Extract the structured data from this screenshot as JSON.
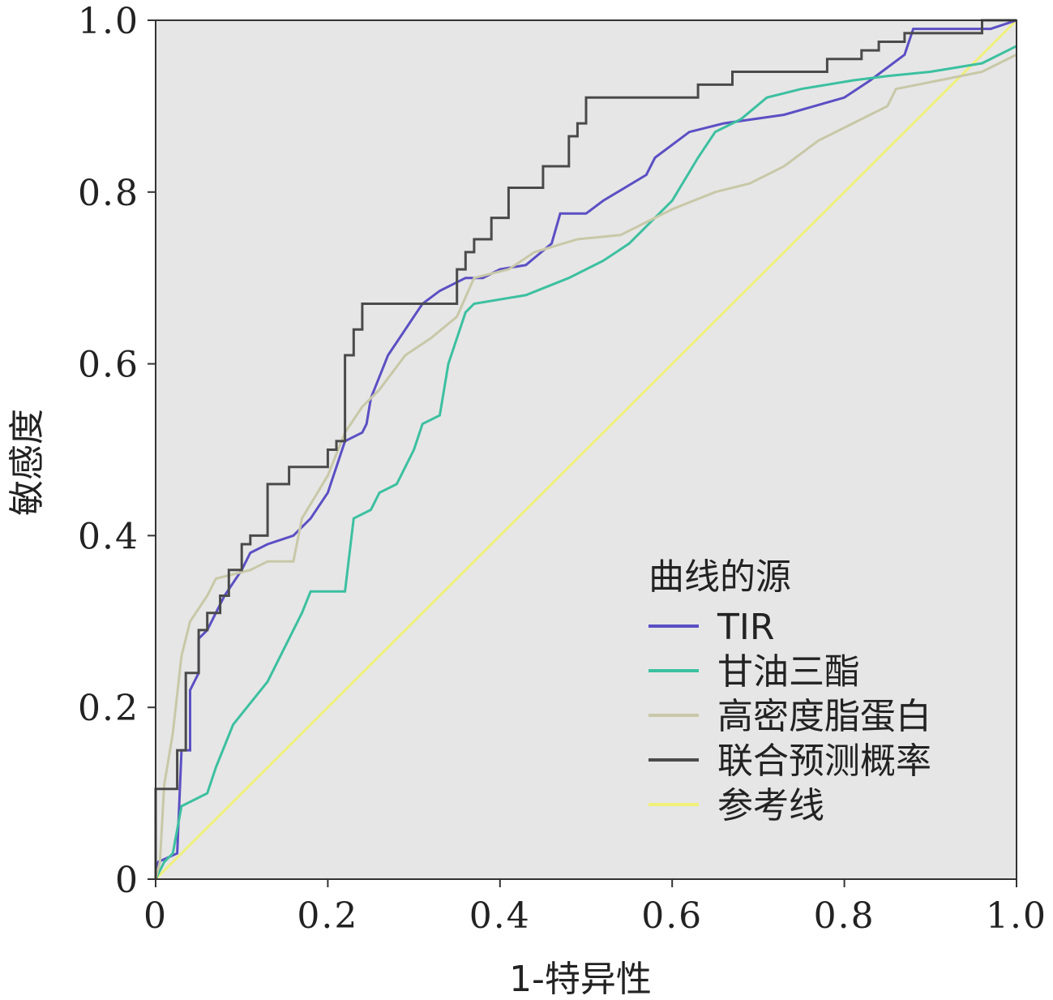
{
  "chart_data": {
    "type": "line",
    "title": "",
    "xlabel": "1-特异性",
    "ylabel": "敏感度",
    "xlim": [
      0,
      1
    ],
    "ylim": [
      0,
      1
    ],
    "x_ticks": [
      "0",
      "0.2",
      "0.4",
      "0.6",
      "0.8",
      "1.0"
    ],
    "y_ticks": [
      "0",
      "0.2",
      "0.4",
      "0.6",
      "0.8",
      "1.0"
    ],
    "grid": false,
    "background": "#e6e6e6",
    "legend": {
      "title": "曲线的源",
      "position": "bottom-right"
    },
    "series": [
      {
        "name": "TIR",
        "color": "#5b4fc4",
        "points": [
          [
            0,
            0
          ],
          [
            0.003,
            0.02
          ],
          [
            0.025,
            0.03
          ],
          [
            0.03,
            0.15
          ],
          [
            0.04,
            0.15
          ],
          [
            0.04,
            0.22
          ],
          [
            0.05,
            0.24
          ],
          [
            0.05,
            0.28
          ],
          [
            0.06,
            0.29
          ],
          [
            0.07,
            0.31
          ],
          [
            0.08,
            0.33
          ],
          [
            0.1,
            0.36
          ],
          [
            0.11,
            0.38
          ],
          [
            0.13,
            0.39
          ],
          [
            0.16,
            0.4
          ],
          [
            0.18,
            0.42
          ],
          [
            0.2,
            0.45
          ],
          [
            0.22,
            0.51
          ],
          [
            0.24,
            0.52
          ],
          [
            0.245,
            0.53
          ],
          [
            0.25,
            0.56
          ],
          [
            0.27,
            0.61
          ],
          [
            0.29,
            0.64
          ],
          [
            0.31,
            0.67
          ],
          [
            0.33,
            0.685
          ],
          [
            0.36,
            0.7
          ],
          [
            0.38,
            0.7
          ],
          [
            0.4,
            0.71
          ],
          [
            0.43,
            0.715
          ],
          [
            0.46,
            0.74
          ],
          [
            0.47,
            0.775
          ],
          [
            0.5,
            0.775
          ],
          [
            0.52,
            0.79
          ],
          [
            0.57,
            0.82
          ],
          [
            0.58,
            0.84
          ],
          [
            0.62,
            0.87
          ],
          [
            0.66,
            0.88
          ],
          [
            0.73,
            0.89
          ],
          [
            0.8,
            0.91
          ],
          [
            0.83,
            0.93
          ],
          [
            0.87,
            0.96
          ],
          [
            0.88,
            0.99
          ],
          [
            0.97,
            0.99
          ],
          [
            1,
            1
          ]
        ]
      },
      {
        "name": "甘油三酯",
        "color": "#3cc0a0",
        "points": [
          [
            0,
            0
          ],
          [
            0.01,
            0.02
          ],
          [
            0.02,
            0.03
          ],
          [
            0.03,
            0.085
          ],
          [
            0.06,
            0.1
          ],
          [
            0.07,
            0.13
          ],
          [
            0.09,
            0.18
          ],
          [
            0.13,
            0.23
          ],
          [
            0.15,
            0.27
          ],
          [
            0.17,
            0.31
          ],
          [
            0.18,
            0.335
          ],
          [
            0.22,
            0.335
          ],
          [
            0.23,
            0.42
          ],
          [
            0.25,
            0.43
          ],
          [
            0.26,
            0.45
          ],
          [
            0.28,
            0.46
          ],
          [
            0.3,
            0.5
          ],
          [
            0.31,
            0.53
          ],
          [
            0.33,
            0.54
          ],
          [
            0.34,
            0.6
          ],
          [
            0.36,
            0.66
          ],
          [
            0.37,
            0.67
          ],
          [
            0.43,
            0.68
          ],
          [
            0.48,
            0.7
          ],
          [
            0.52,
            0.72
          ],
          [
            0.55,
            0.74
          ],
          [
            0.57,
            0.76
          ],
          [
            0.6,
            0.79
          ],
          [
            0.63,
            0.84
          ],
          [
            0.65,
            0.87
          ],
          [
            0.68,
            0.885
          ],
          [
            0.71,
            0.91
          ],
          [
            0.75,
            0.92
          ],
          [
            0.81,
            0.93
          ],
          [
            0.85,
            0.935
          ],
          [
            0.9,
            0.94
          ],
          [
            0.96,
            0.95
          ],
          [
            1,
            0.97
          ]
        ]
      },
      {
        "name": "高密度脂蛋白",
        "color": "#c8c8a8",
        "points": [
          [
            0,
            0
          ],
          [
            0.005,
            0.02
          ],
          [
            0.01,
            0.11
          ],
          [
            0.02,
            0.17
          ],
          [
            0.03,
            0.26
          ],
          [
            0.04,
            0.3
          ],
          [
            0.06,
            0.33
          ],
          [
            0.07,
            0.35
          ],
          [
            0.11,
            0.36
          ],
          [
            0.13,
            0.37
          ],
          [
            0.16,
            0.37
          ],
          [
            0.17,
            0.42
          ],
          [
            0.2,
            0.47
          ],
          [
            0.22,
            0.52
          ],
          [
            0.24,
            0.55
          ],
          [
            0.26,
            0.57
          ],
          [
            0.29,
            0.61
          ],
          [
            0.32,
            0.63
          ],
          [
            0.35,
            0.655
          ],
          [
            0.37,
            0.7
          ],
          [
            0.41,
            0.71
          ],
          [
            0.44,
            0.73
          ],
          [
            0.49,
            0.745
          ],
          [
            0.54,
            0.75
          ],
          [
            0.6,
            0.78
          ],
          [
            0.65,
            0.8
          ],
          [
            0.69,
            0.81
          ],
          [
            0.73,
            0.83
          ],
          [
            0.77,
            0.86
          ],
          [
            0.81,
            0.88
          ],
          [
            0.85,
            0.9
          ],
          [
            0.86,
            0.92
          ],
          [
            0.91,
            0.93
          ],
          [
            0.96,
            0.94
          ],
          [
            1,
            0.96
          ]
        ]
      },
      {
        "name": "联合预测概率",
        "color": "#4a4a4a",
        "points": [
          [
            0,
            0
          ],
          [
            0,
            0.105
          ],
          [
            0.025,
            0.105
          ],
          [
            0.025,
            0.15
          ],
          [
            0.035,
            0.15
          ],
          [
            0.035,
            0.24
          ],
          [
            0.05,
            0.24
          ],
          [
            0.05,
            0.29
          ],
          [
            0.06,
            0.29
          ],
          [
            0.06,
            0.31
          ],
          [
            0.075,
            0.31
          ],
          [
            0.075,
            0.33
          ],
          [
            0.085,
            0.33
          ],
          [
            0.085,
            0.36
          ],
          [
            0.1,
            0.36
          ],
          [
            0.1,
            0.39
          ],
          [
            0.11,
            0.39
          ],
          [
            0.11,
            0.4
          ],
          [
            0.13,
            0.4
          ],
          [
            0.13,
            0.46
          ],
          [
            0.155,
            0.46
          ],
          [
            0.155,
            0.48
          ],
          [
            0.2,
            0.48
          ],
          [
            0.2,
            0.5
          ],
          [
            0.21,
            0.5
          ],
          [
            0.21,
            0.51
          ],
          [
            0.22,
            0.51
          ],
          [
            0.22,
            0.61
          ],
          [
            0.23,
            0.61
          ],
          [
            0.23,
            0.64
          ],
          [
            0.24,
            0.64
          ],
          [
            0.24,
            0.67
          ],
          [
            0.35,
            0.67
          ],
          [
            0.35,
            0.71
          ],
          [
            0.36,
            0.71
          ],
          [
            0.36,
            0.73
          ],
          [
            0.37,
            0.73
          ],
          [
            0.37,
            0.745
          ],
          [
            0.39,
            0.745
          ],
          [
            0.39,
            0.77
          ],
          [
            0.41,
            0.77
          ],
          [
            0.41,
            0.805
          ],
          [
            0.45,
            0.805
          ],
          [
            0.45,
            0.83
          ],
          [
            0.48,
            0.83
          ],
          [
            0.48,
            0.865
          ],
          [
            0.49,
            0.865
          ],
          [
            0.49,
            0.88
          ],
          [
            0.5,
            0.88
          ],
          [
            0.5,
            0.91
          ],
          [
            0.63,
            0.91
          ],
          [
            0.63,
            0.925
          ],
          [
            0.67,
            0.925
          ],
          [
            0.67,
            0.94
          ],
          [
            0.78,
            0.94
          ],
          [
            0.78,
            0.955
          ],
          [
            0.82,
            0.955
          ],
          [
            0.82,
            0.965
          ],
          [
            0.84,
            0.965
          ],
          [
            0.84,
            0.975
          ],
          [
            0.87,
            0.975
          ],
          [
            0.87,
            0.985
          ],
          [
            0.96,
            0.985
          ],
          [
            0.96,
            1
          ],
          [
            1,
            1
          ]
        ]
      },
      {
        "name": "参考线",
        "color": "#f0f07a",
        "points": [
          [
            0,
            0
          ],
          [
            1,
            1
          ]
        ]
      }
    ]
  }
}
